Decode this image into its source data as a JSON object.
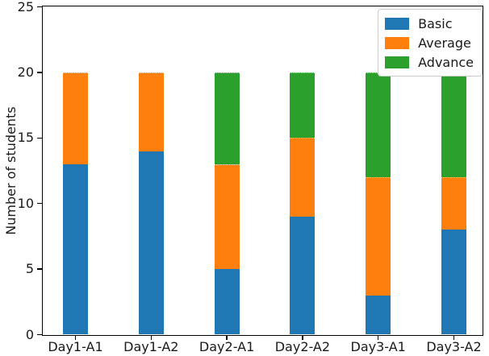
{
  "chart_data": {
    "type": "bar",
    "stacked": true,
    "ylabel": "Number of students",
    "ylim": [
      0,
      25
    ],
    "yticks": [
      0,
      5,
      10,
      15,
      20,
      25
    ],
    "grid": false,
    "legend_position": "upper right",
    "categories": [
      "Day1-A1",
      "Day1-A2",
      "Day2-A1",
      "Day2-A2",
      "Day3-A1",
      "Day3-A2"
    ],
    "series": [
      {
        "name": "Basic",
        "color": "#1f77b4",
        "values": [
          13,
          14,
          5,
          9,
          3,
          8
        ]
      },
      {
        "name": "Average",
        "color": "#ff7f0e",
        "values": [
          7,
          6,
          8,
          6,
          9,
          4
        ]
      },
      {
        "name": "Advance",
        "color": "#2ca02c",
        "values": [
          0,
          0,
          7,
          5,
          8,
          8
        ]
      }
    ]
  },
  "colors": {
    "spine": "#000000",
    "text": "#1a1a1a",
    "legend_border": "#cccccc",
    "background": "#ffffff"
  }
}
